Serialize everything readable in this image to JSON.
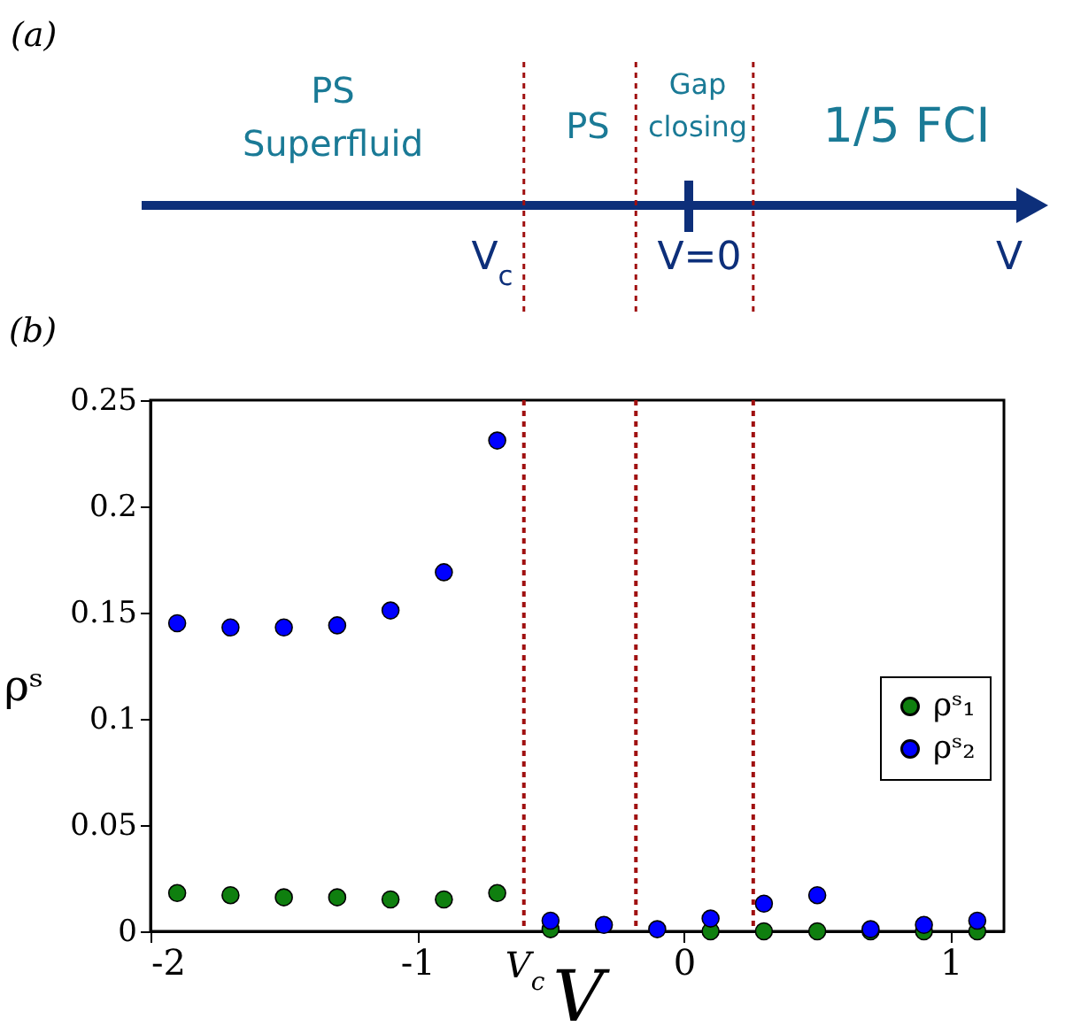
{
  "chart_data": [
    {
      "type": "other",
      "title": "(a)",
      "annotations": [
        "PS Superfluid",
        "PS",
        "Gap closing",
        "1/5 FCI",
        "V$_{c}$",
        "V=0",
        "V"
      ]
    },
    {
      "type": "scatter",
      "title": "(b)",
      "xlabel": "V",
      "ylabel": "ρˢ",
      "x": [
        -1.9,
        -1.7,
        -1.5,
        -1.3,
        -1.1,
        -0.9,
        -0.7,
        -0.5,
        -0.3,
        -0.1,
        0.1,
        0.3,
        0.5,
        0.7,
        0.9,
        1.1
      ],
      "series": [
        {
          "name": "ρˢ₁",
          "color": "#0f7f0f",
          "values": [
            0.018,
            0.017,
            0.016,
            0.016,
            0.015,
            0.015,
            0.018,
            0.001,
            null,
            null,
            0,
            0,
            0,
            0,
            0,
            0
          ]
        },
        {
          "name": "ρˢ₂",
          "color": "#0000ff",
          "values": [
            0.145,
            0.143,
            0.143,
            0.144,
            0.151,
            0.169,
            0.231,
            0.005,
            0.003,
            0.001,
            0.006,
            0.013,
            0.017,
            0.001,
            0.003,
            0.005
          ]
        }
      ],
      "xlim": [
        -2,
        1.2
      ],
      "ylim": [
        0,
        0.25
      ],
      "xticks": [
        -2,
        -1,
        0,
        1
      ],
      "yticks": [
        0,
        0.05,
        0.1,
        0.15,
        0.2,
        0.25
      ],
      "marker": "circle",
      "legend": "right",
      "ref_lines": [
        {
          "axis": "x",
          "value": -0.6,
          "color": "#a01010",
          "line_style": "dotted"
        },
        {
          "axis": "x",
          "value": -0.18,
          "color": "#a01010",
          "line_style": "dotted"
        },
        {
          "axis": "x",
          "value": 0.26,
          "color": "#a01010",
          "line_style": "dotted"
        }
      ],
      "annotations": [
        {
          "text": "V$_{c}$",
          "x": -0.6,
          "y": 0
        }
      ]
    }
  ]
}
